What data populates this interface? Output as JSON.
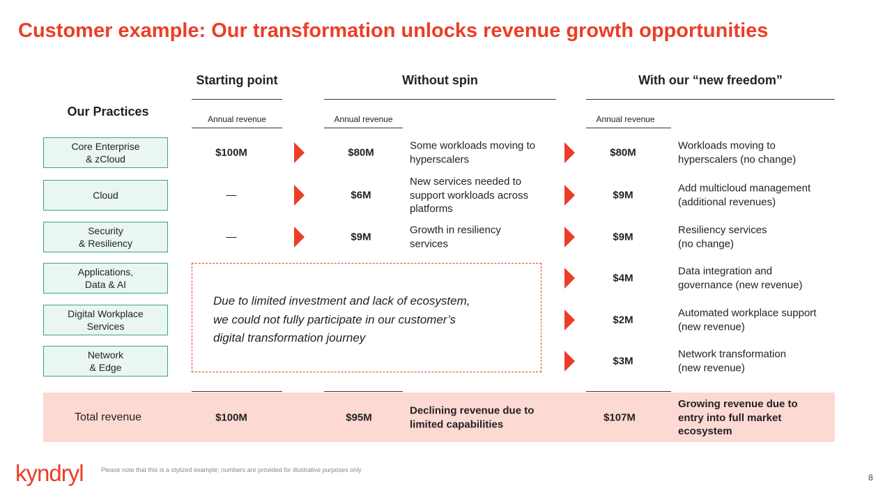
{
  "title": "Customer example: Our transformation unlocks revenue growth opportunities",
  "headers": {
    "practices": "Our Practices",
    "starting_point": "Starting point",
    "without_spin": "Without spin",
    "with_freedom": "With our “new freedom”",
    "annual_revenue": [
      "Annual revenue",
      "Annual revenue",
      "Annual revenue"
    ]
  },
  "rows": [
    {
      "practice": "Core Enterprise\n& zCloud",
      "start": "$100M",
      "without_value": "$80M",
      "without_note": "Some workloads moving to\nhyperscalers",
      "with_value": "$80M",
      "with_note": "Workloads moving to\nhyperscalers (no change)"
    },
    {
      "practice": "Cloud",
      "start": "—",
      "without_value": "$6M",
      "without_note": "New services needed to\nsupport workloads across\nplatforms",
      "with_value": "$9M",
      "with_note": "Add multicloud management\n(additional revenues)"
    },
    {
      "practice": "Security\n& Resiliency",
      "start": "—",
      "without_value": "$9M",
      "without_note": "Growth in resiliency\nservices",
      "with_value": "$9M",
      "with_note": "Resiliency services\n(no change)"
    },
    {
      "practice": "Applications,\nData & AI",
      "with_value": "$4M",
      "with_note": "Data integration and\ngovernance (new revenue)"
    },
    {
      "practice": "Digital Workplace\nServices",
      "with_value": "$2M",
      "with_note": "Automated workplace support\n(new revenue)"
    },
    {
      "practice": "Network\n& Edge",
      "with_value": "$3M",
      "with_note": "Network transformation\n(new revenue)"
    }
  ],
  "callout": "Due to limited investment and lack of ecosystem,\nwe could not fully participate in our customer’s\ndigital transformation journey",
  "total": {
    "label": "Total revenue",
    "start": "$100M",
    "without_value": "$95M",
    "without_note": "Declining revenue due to\nlimited capabilities",
    "with_value": "$107M",
    "with_note": "Growing revenue due to\nentry into full market\necosystem"
  },
  "footnote": "Please note that this is a stylized example; numbers are provided for illustrative purposes only",
  "logo": "kyndryl",
  "page_number": "8"
}
